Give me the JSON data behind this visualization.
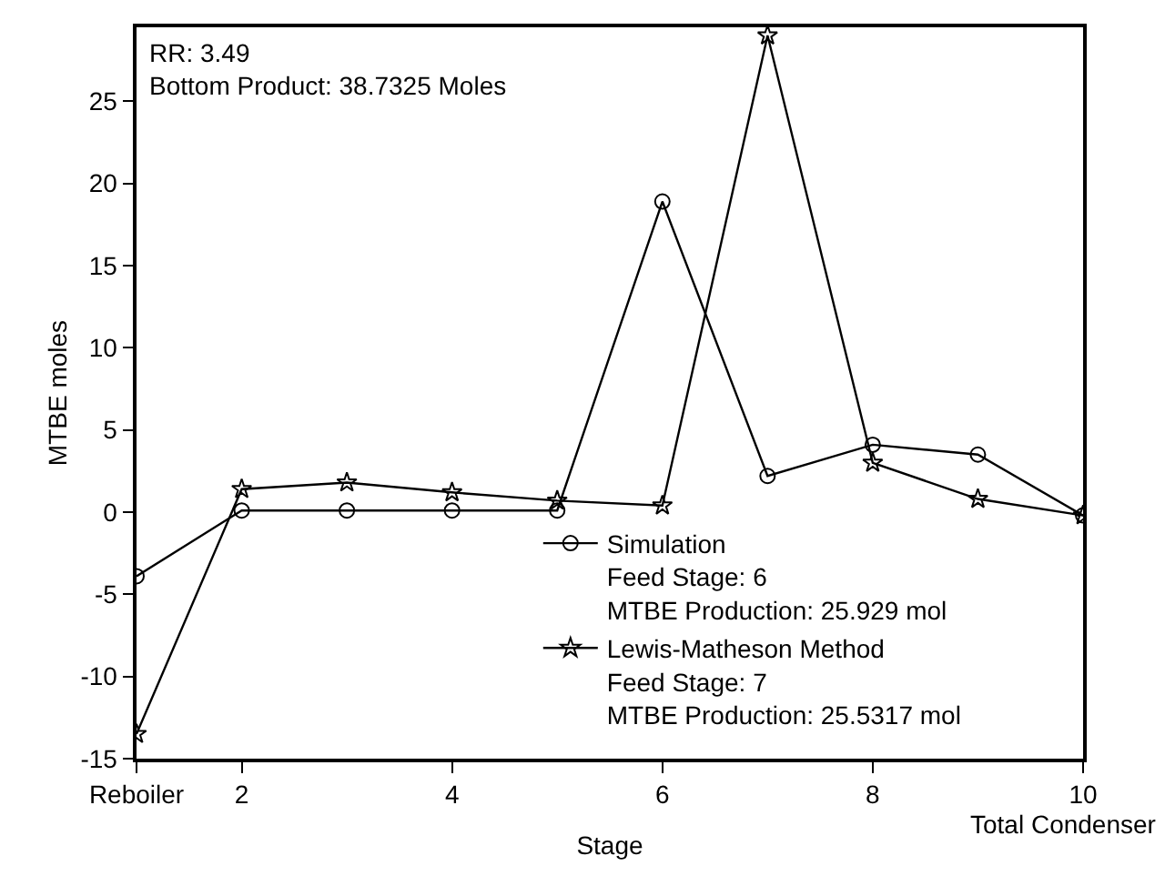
{
  "chart_data": {
    "type": "line",
    "xlabel": "Stage",
    "ylabel": "MTBE moles",
    "x": [
      1,
      2,
      3,
      4,
      5,
      6,
      7,
      8,
      9,
      10
    ],
    "series": [
      {
        "name": "Simulation\nFeed Stage: 6\nMTBE Production: 25.929 mol",
        "color": "#000000",
        "marker": "circle",
        "values": [
          -3.9,
          0.1,
          0.1,
          0.1,
          0.1,
          18.9,
          2.2,
          4.1,
          3.5,
          -0.2
        ]
      },
      {
        "name": "Lewis-Matheson Method\nFeed Stage: 7\nMTBE Production: 25.5317 mol",
        "color": "#000000",
        "marker": "star",
        "values": [
          -13.5,
          1.4,
          1.8,
          1.2,
          0.7,
          0.4,
          29.0,
          3.0,
          0.8,
          -0.2
        ]
      }
    ],
    "xlim": [
      1,
      10
    ],
    "xticks": [
      {
        "value": 1,
        "label": "Reboiler"
      },
      2,
      4,
      6,
      8,
      10
    ],
    "ylim": [
      -15,
      29.5
    ],
    "yticks": [
      -15,
      -10,
      -5,
      0,
      5,
      10,
      15,
      20,
      25
    ],
    "annotations": [
      "RR: 3.49\nBottom Product: 38.7325 Moles",
      "Total Condenser"
    ],
    "grid": false,
    "legend": "bottom right",
    "line_style": "solid"
  }
}
